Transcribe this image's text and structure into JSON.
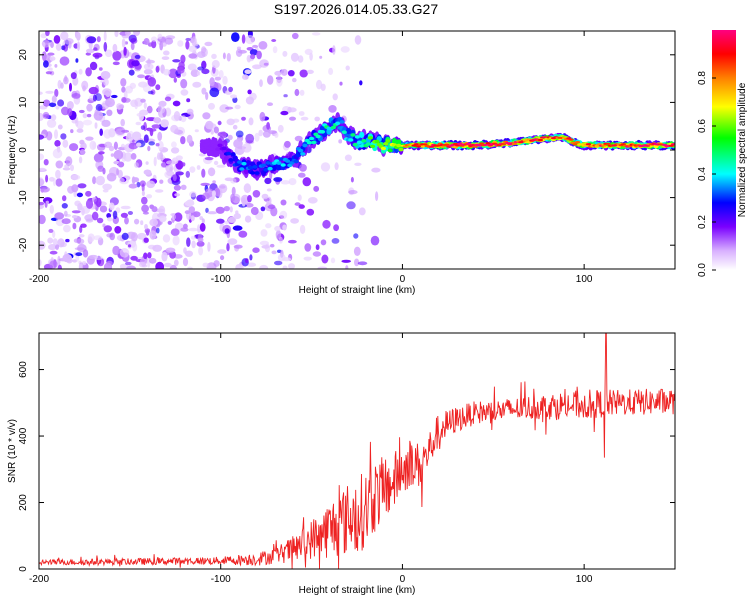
{
  "title": "S197.2026.014.05.33.G27",
  "chart_data": [
    {
      "type": "heatmap",
      "title": "S197.2026.014.05.33.G27",
      "xlabel": "Height of straight line (km)",
      "ylabel": "Frequency (Hz)",
      "xlim": [
        -200,
        150
      ],
      "ylim": [
        -25,
        25
      ],
      "xticks": [
        -200,
        -100,
        0,
        100
      ],
      "yticks": [
        -20,
        -10,
        0,
        10,
        20
      ],
      "colorbar": {
        "label": "Normalized spectral amplitude",
        "range": [
          0,
          1
        ],
        "ticks": [
          "0.0",
          "0.2",
          "0.4",
          "0.6",
          "0.8"
        ],
        "colormap": "rainbow (white-violet-blue-cyan-green-yellow-orange-red-magenta)"
      },
      "ridge": {
        "x": [
          -110,
          -100,
          -90,
          -80,
          -70,
          -60,
          -50,
          -40,
          -35,
          -30,
          -25,
          -20,
          -10,
          0,
          10,
          20,
          40,
          60,
          80,
          85,
          90,
          95,
          100,
          120,
          150
        ],
        "frequency": [
          1,
          0,
          -3,
          -4,
          -3,
          -2,
          2,
          5,
          6,
          3,
          2,
          2,
          1,
          1,
          1,
          1,
          1,
          1.5,
          2.5,
          2.5,
          2.5,
          1.5,
          1,
          1,
          1
        ],
        "amplitude": [
          0.1,
          0.2,
          0.35,
          0.3,
          0.35,
          0.35,
          0.4,
          0.45,
          0.4,
          0.4,
          0.45,
          0.5,
          0.6,
          0.7,
          0.85,
          0.9,
          0.95,
          0.9,
          0.85,
          0.8,
          0.85,
          0.8,
          0.85,
          0.9,
          0.95
        ]
      },
      "noise_region_x": [
        -200,
        -30
      ]
    },
    {
      "type": "line",
      "xlabel": "Height of straight line (km)",
      "ylabel": "SNR (10 * v/v)",
      "xlim": [
        -200,
        150
      ],
      "ylim": [
        0,
        710
      ],
      "xticks": [
        -200,
        -100,
        0,
        100
      ],
      "yticks": [
        0,
        200,
        400,
        600
      ],
      "series": [
        {
          "name": "SNR",
          "color": "#ee2222",
          "trend_x": [
            -200,
            -150,
            -100,
            -80,
            -70,
            -60,
            -50,
            -40,
            -30,
            -20,
            -15,
            -10,
            -5,
            0,
            5,
            10,
            15,
            20,
            30,
            40,
            60,
            80,
            100,
            120,
            150
          ],
          "trend_y": [
            20,
            22,
            25,
            30,
            40,
            60,
            90,
            120,
            150,
            180,
            220,
            240,
            260,
            300,
            320,
            310,
            360,
            420,
            450,
            470,
            480,
            490,
            495,
            500,
            505
          ],
          "noise_amplitude": [
            8,
            10,
            12,
            20,
            25,
            40,
            60,
            90,
            110,
            120,
            110,
            100,
            90,
            80,
            70,
            70,
            60,
            50,
            40,
            35,
            35,
            40,
            45,
            40,
            40
          ],
          "spikes": [
            {
              "x": 112,
              "y": 710
            },
            {
              "x": 111,
              "y": 335
            }
          ]
        }
      ]
    }
  ]
}
